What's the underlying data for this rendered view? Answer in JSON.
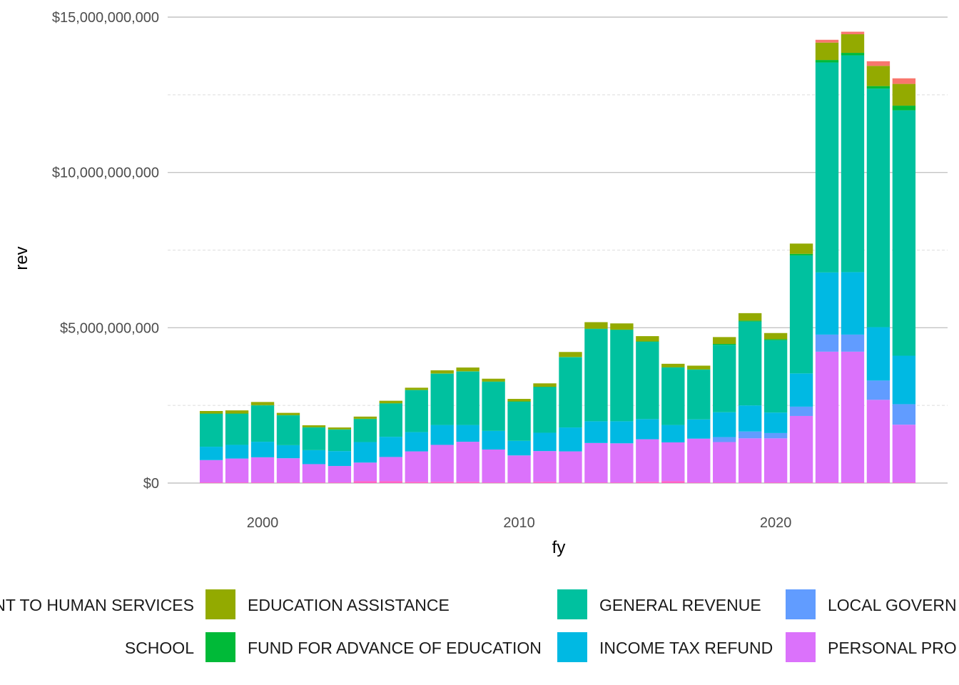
{
  "chart_data": {
    "type": "bar",
    "stacked": true,
    "xlabel": "fy",
    "ylabel": "rev",
    "ylim": [
      0,
      15000000000
    ],
    "xlim": [
      1996.3,
      2026.7
    ],
    "yticks": [
      0,
      5000000000,
      10000000000,
      15000000000
    ],
    "ytick_labels": [
      "$0",
      "$5,000,000,000",
      "$10,000,000,000",
      "$15,000,000,000"
    ],
    "xticks": [
      2000,
      2010,
      2020
    ],
    "xtick_labels": [
      "2000",
      "2010",
      "2020"
    ],
    "grid": true,
    "legend_position": "bottom",
    "x": [
      1998,
      1999,
      2000,
      2001,
      2002,
      2003,
      2004,
      2005,
      2006,
      2007,
      2008,
      2009,
      2010,
      2011,
      2012,
      2013,
      2014,
      2015,
      2016,
      2017,
      2018,
      2019,
      2020,
      2021,
      2022,
      2023,
      2024,
      2025
    ],
    "series": [
      {
        "name": "SCHOOL",
        "color": "#FF61C3",
        "values": [
          20000000,
          20000000,
          20000000,
          20000000,
          20000000,
          20000000,
          60000000,
          60000000,
          40000000,
          40000000,
          40000000,
          20000000,
          20000000,
          40000000,
          20000000,
          20000000,
          20000000,
          40000000,
          60000000,
          20000000,
          20000000,
          20000000,
          20000000,
          20000000,
          20000000,
          20000000,
          20000000,
          20000000
        ]
      },
      {
        "name": "PERSONAL PRO",
        "color": "#DB72FB",
        "values": [
          720000000,
          770000000,
          810000000,
          780000000,
          590000000,
          530000000,
          600000000,
          780000000,
          980000000,
          1190000000,
          1290000000,
          1060000000,
          870000000,
          990000000,
          1000000000,
          1270000000,
          1260000000,
          1370000000,
          1250000000,
          1410000000,
          1300000000,
          1420000000,
          1420000000,
          2140000000,
          4210000000,
          4210000000,
          2660000000,
          1860000000
        ]
      },
      {
        "name": "LOCAL GOVERN",
        "color": "#619CFF",
        "values": [
          0,
          0,
          0,
          0,
          0,
          0,
          0,
          0,
          0,
          0,
          0,
          0,
          0,
          0,
          0,
          0,
          0,
          0,
          0,
          0,
          160000000,
          220000000,
          170000000,
          300000000,
          550000000,
          550000000,
          620000000,
          660000000
        ]
      },
      {
        "name": "INCOME TAX REFUND",
        "color": "#00B9E3",
        "values": [
          430000000,
          440000000,
          500000000,
          420000000,
          450000000,
          480000000,
          660000000,
          650000000,
          620000000,
          640000000,
          540000000,
          600000000,
          470000000,
          590000000,
          770000000,
          700000000,
          710000000,
          650000000,
          560000000,
          620000000,
          800000000,
          840000000,
          660000000,
          1070000000,
          2000000000,
          2010000000,
          1720000000,
          1560000000
        ]
      },
      {
        "name": "GENERAL REVENUE",
        "color": "#00C19F",
        "values": [
          1060000000,
          1000000000,
          1170000000,
          960000000,
          730000000,
          690000000,
          740000000,
          1070000000,
          1350000000,
          1650000000,
          1720000000,
          1580000000,
          1260000000,
          1470000000,
          2260000000,
          2970000000,
          2940000000,
          2490000000,
          1850000000,
          1600000000,
          2170000000,
          2700000000,
          2330000000,
          3800000000,
          6760000000,
          6980000000,
          7680000000,
          7900000000
        ]
      },
      {
        "name": "FUND FOR ADVANCE OF EDUCATION",
        "color": "#00BA38",
        "values": [
          10000000,
          10000000,
          10000000,
          10000000,
          10000000,
          10000000,
          10000000,
          10000000,
          10000000,
          10000000,
          10000000,
          10000000,
          10000000,
          10000000,
          10000000,
          10000000,
          10000000,
          10000000,
          10000000,
          10000000,
          30000000,
          30000000,
          30000000,
          50000000,
          80000000,
          80000000,
          80000000,
          150000000
        ]
      },
      {
        "name": "EDUCATION ASSISTANCE",
        "color": "#93AA00",
        "values": [
          80000000,
          100000000,
          100000000,
          70000000,
          60000000,
          60000000,
          70000000,
          80000000,
          70000000,
          100000000,
          120000000,
          90000000,
          80000000,
          110000000,
          160000000,
          210000000,
          200000000,
          170000000,
          110000000,
          120000000,
          220000000,
          240000000,
          200000000,
          330000000,
          560000000,
          600000000,
          650000000,
          700000000
        ]
      },
      {
        "name": "NT TO HUMAN SERVICES",
        "color": "#F8766D",
        "values": [
          0,
          0,
          0,
          0,
          0,
          0,
          0,
          0,
          0,
          0,
          0,
          0,
          0,
          0,
          0,
          0,
          0,
          0,
          0,
          0,
          0,
          0,
          0,
          0,
          90000000,
          80000000,
          150000000,
          180000000
        ]
      }
    ]
  },
  "legend": {
    "rows": [
      [
        "NT TO HUMAN SERVICES",
        "EDUCATION ASSISTANCE",
        "GENERAL REVENUE",
        "LOCAL GOVERN"
      ],
      [
        "SCHOOL",
        "FUND FOR ADVANCE OF EDUCATION",
        "INCOME TAX REFUND",
        "PERSONAL PRO"
      ]
    ]
  }
}
